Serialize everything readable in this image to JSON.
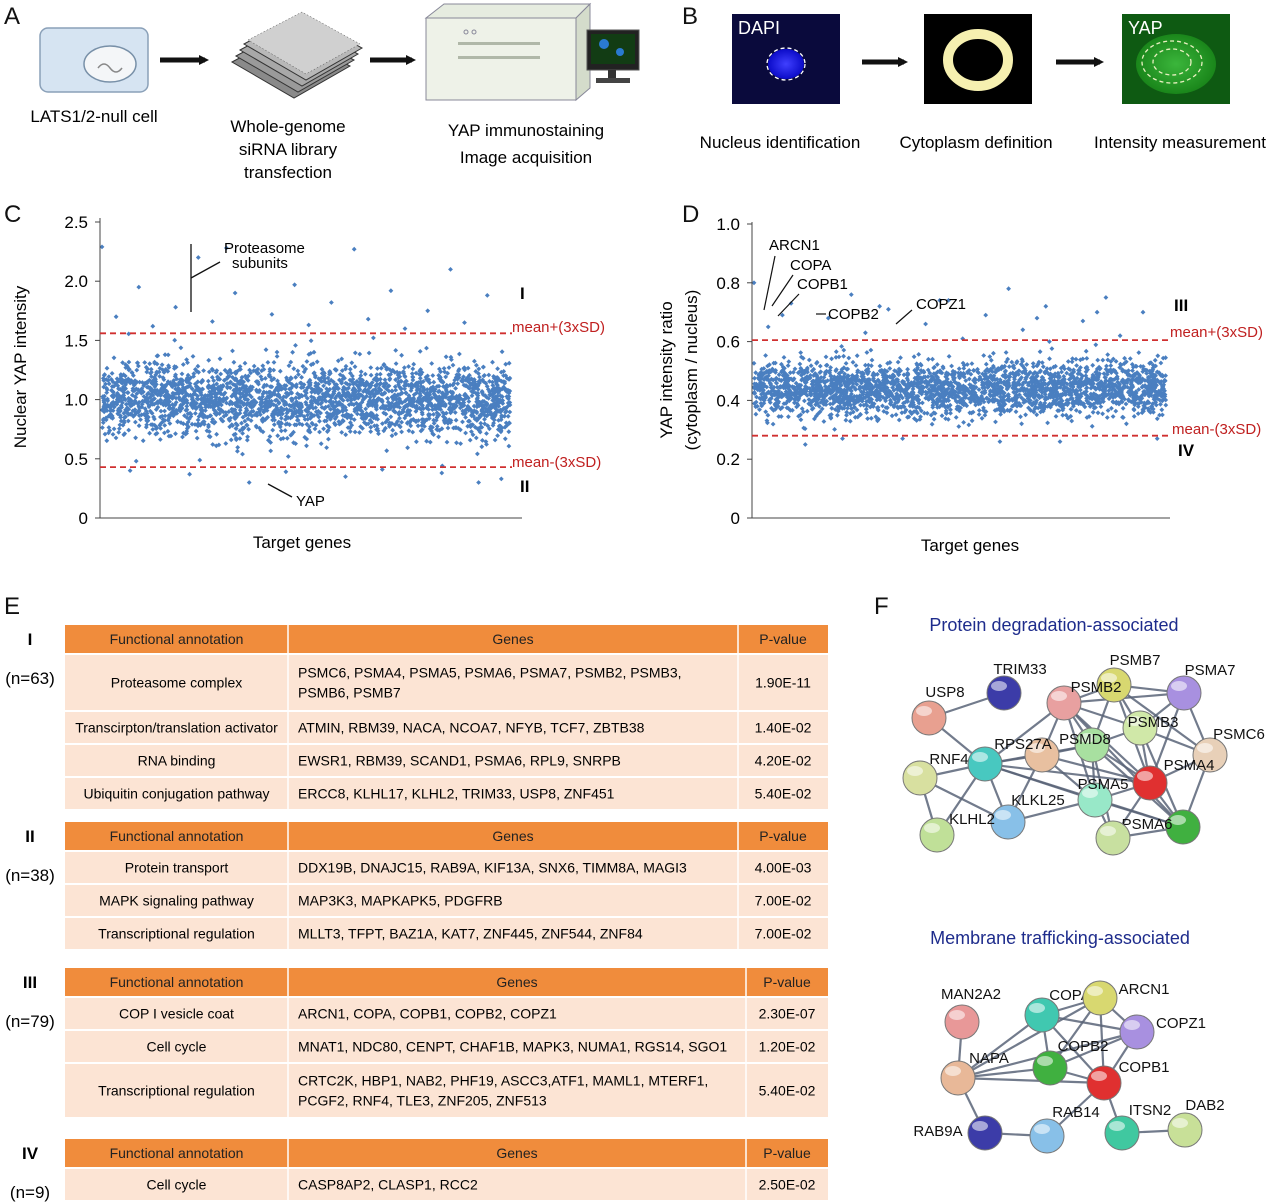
{
  "panels": {
    "A": {
      "letter": "A",
      "steps": [
        {
          "lines": [
            "LATS1/2-null cell"
          ]
        },
        {
          "lines": [
            "Whole-genome",
            "siRNA library",
            "transfection"
          ]
        },
        {
          "lines": [
            "YAP immunostaining",
            "Image acquisition"
          ]
        }
      ]
    },
    "B": {
      "letter": "B",
      "image_labels": [
        "DAPI",
        "YAP"
      ],
      "steps": [
        "Nucleus identification",
        "Cytoplasm definition",
        "Intensity  measurement"
      ],
      "colors": {
        "nucleus": "#1010e0",
        "cytoplasm_ring": "#f6f0b0",
        "yap": "#2a9b2a"
      }
    },
    "C": {
      "letter": "C",
      "annotations": {
        "proteasome": [
          "Proteasome",
          "subunits"
        ],
        "yap": "YAP",
        "region_upper": "I",
        "region_lower": "II",
        "upper_line": "mean+(3xSD)",
        "lower_line": "mean-(3xSD)"
      }
    },
    "D": {
      "letter": "D",
      "annotations": {
        "genes": [
          "ARCN1",
          "COPA",
          "COPB1",
          "COPB2",
          "COPZ1"
        ],
        "region_upper": "III",
        "region_lower": "IV",
        "upper_line": "mean+(3xSD)",
        "lower_line": "mean-(3xSD)"
      }
    },
    "E": {
      "letter": "E",
      "headers": [
        "Functional annotation",
        "Genes",
        "P-value"
      ],
      "groups": [
        {
          "label": "I",
          "n": "(n=63)",
          "rows": [
            {
              "annotation": "Proteasome complex",
              "genes": [
                "PSMC6, PSMA4, PSMA5, PSMA6, PSMA7, PSMB2, PSMB3,",
                "PSMB6, PSMB7"
              ],
              "p": "1.90E-11"
            },
            {
              "annotation": "Transcirpton/translation  activator",
              "genes": [
                "ATMIN,  RBM39, NACA, NCOA7, NFYB, TCF7, ZBTB38"
              ],
              "p": "1.40E-02"
            },
            {
              "annotation": "RNA binding",
              "genes": [
                "EWSR1, RBM39, SCAND1, PSMA6, RPL9, SNRPB"
              ],
              "p": "4.20E-02"
            },
            {
              "annotation": "Ubiquitin conjugation pathway",
              "genes": [
                "ERCC8, KLHL17, KLHL2, TRIM33,  USP8, ZNF451"
              ],
              "p": "5.40E-02"
            }
          ]
        },
        {
          "label": "II",
          "n": "(n=38)",
          "rows": [
            {
              "annotation": "Protein transport",
              "genes": [
                "DDX19B, DNAJC15, RAB9A, KIF13A, SNX6, TIMM8A,  MAGI3"
              ],
              "p": "4.00E-03"
            },
            {
              "annotation": "MAPK signaling pathway",
              "genes": [
                "MAP3K3, MAPKAPK5, PDGFRB"
              ],
              "p": "7.00E-02"
            },
            {
              "annotation": "Transcriptional regulation",
              "genes": [
                "MLLT3, TFPT,  BAZ1A, KAT7, ZNF445, ZNF544, ZNF84"
              ],
              "p": "7.00E-02"
            }
          ]
        },
        {
          "label": "III",
          "n": "(n=79)",
          "rows": [
            {
              "annotation": "COP I vesicle coat",
              "genes": [
                "ARCN1, COPA, COPB1, COPB2, COPZ1"
              ],
              "p": "2.30E-07"
            },
            {
              "annotation": "Cell cycle",
              "genes": [
                "MNAT1, NDC80, CENPT, CHAF1B, MAPK3, NUMA1, RGS14, SGO1"
              ],
              "p": "1.20E-02"
            },
            {
              "annotation": "Transcriptional regulation",
              "genes": [
                "CRTC2K, HBP1, NAB2, PHF19, ASCC3,ATF1, MAML1, MTERF1,",
                "PCGF2, RNF4, TLE3, ZNF205, ZNF513"
              ],
              "p": "5.40E-02"
            }
          ]
        },
        {
          "label": "IV",
          "n": "(n=9)",
          "rows": [
            {
              "annotation": "Cell cycle",
              "genes": [
                "CASP8AP2,  CLASP1,  RCC2"
              ],
              "p": "2.50E-02"
            }
          ]
        }
      ],
      "colors": {
        "header": "#f08c3c",
        "row": "#fce4d4"
      }
    },
    "F": {
      "letter": "F",
      "networks": [
        {
          "title": "Protein degradation-associated",
          "nodes": [
            {
              "id": "TRIM33",
              "color": "#3c3ca8"
            },
            {
              "id": "USP8",
              "color": "#e8a090"
            },
            {
              "id": "PSMB7",
              "color": "#d8d870"
            },
            {
              "id": "PSMA7",
              "color": "#a890e0"
            },
            {
              "id": "PSMB2",
              "color": "#e8a0a0"
            },
            {
              "id": "PSMB3",
              "color": "#d0e8a8"
            },
            {
              "id": "PSMC6",
              "color": "#e8d0b8"
            },
            {
              "id": "PSMD8",
              "color": "#a8e0a0"
            },
            {
              "id": "RPS27A",
              "color": "#e8c0a0"
            },
            {
              "id": "RNF4",
              "color": "#48c8c0"
            },
            {
              "id": "PSMA4",
              "color": "#e03030"
            },
            {
              "id": "PSMA5",
              "color": "#98e8c8"
            },
            {
              "id": "KLKL25",
              "color": "#88c0e8"
            },
            {
              "id": "KLHL2",
              "color": "#d8e0a0"
            },
            {
              "id": "PSMA6",
              "color": "#40b040"
            },
            {
              "id": "",
              "color": "#c8e0a0"
            },
            {
              "id": "",
              "color": "#c0e098"
            }
          ]
        },
        {
          "title": "Membrane trafficking-associated",
          "nodes": [
            {
              "id": "MAN2A2",
              "color": "#e89898"
            },
            {
              "id": "COPA",
              "color": "#40c8b0"
            },
            {
              "id": "ARCN1",
              "color": "#d8d870"
            },
            {
              "id": "COPZ1",
              "color": "#a890e0"
            },
            {
              "id": "COPB2",
              "color": "#40b040"
            },
            {
              "id": "NAPA",
              "color": "#e8b898"
            },
            {
              "id": "COPB1",
              "color": "#e03030"
            },
            {
              "id": "RAB9A",
              "color": "#3c3ca8"
            },
            {
              "id": "RAB14",
              "color": "#88c0e8"
            },
            {
              "id": "ITSN2",
              "color": "#40c8a0"
            },
            {
              "id": "DAB2",
              "color": "#c8e098"
            }
          ]
        }
      ]
    }
  },
  "chart_data": [
    {
      "type": "scatter",
      "xlabel": "Target genes",
      "ylabel": "Nuclear YAP intensity",
      "ylim": [
        0,
        2.5
      ],
      "yticks": [
        "0",
        "0.5",
        "1.0",
        "1.5",
        "2.0",
        "2.5"
      ],
      "n_points": 2600,
      "mean": 1.0,
      "upper_threshold": 1.56,
      "lower_threshold": 0.43,
      "highlight_points": [
        {
          "label": "Proteasome subunits",
          "y": 2.28
        },
        {
          "label": "YAP",
          "y": 0.3
        }
      ],
      "outliers_high": [
        2.29,
        2.27,
        2.2,
        2.1,
        1.97,
        1.95,
        1.92,
        1.9,
        1.88,
        1.82,
        1.78,
        1.75,
        1.72,
        1.7,
        1.68,
        1.66,
        1.65,
        1.63,
        1.62,
        1.6
      ],
      "outliers_low": [
        0.3,
        0.33,
        0.35,
        0.37,
        0.38,
        0.39,
        0.4,
        0.41
      ],
      "grid": false,
      "color": "#4a7fc0",
      "threshold_color": "#d03030"
    },
    {
      "type": "scatter",
      "xlabel": "Target genes",
      "ylabel": [
        "YAP intensity ratio",
        "(cytoplasm / nucleus)"
      ],
      "ylim": [
        0,
        1.0
      ],
      "yticks": [
        "0",
        "0.2",
        "0.4",
        "0.6",
        "0.8",
        "1.0"
      ],
      "n_points": 2600,
      "mean": 0.44,
      "upper_threshold": 0.605,
      "lower_threshold": 0.28,
      "highlight_points": [
        {
          "label": "ARCN1",
          "y": 0.7
        },
        {
          "label": "COPA",
          "y": 0.74
        },
        {
          "label": "COPB1",
          "y": 0.69
        },
        {
          "label": "COPB2",
          "y": 0.68
        },
        {
          "label": "COPZ1",
          "y": 0.72
        }
      ],
      "outliers_high": [
        0.8,
        0.78,
        0.76,
        0.75,
        0.74,
        0.73,
        0.72,
        0.71,
        0.7,
        0.69,
        0.68,
        0.67,
        0.66,
        0.65,
        0.64,
        0.63,
        0.62,
        0.61
      ],
      "outliers_low": [
        0.25,
        0.26,
        0.27,
        0.27,
        0.26,
        0.27
      ],
      "grid": false,
      "color": "#4a7fc0",
      "threshold_color": "#d03030"
    }
  ]
}
